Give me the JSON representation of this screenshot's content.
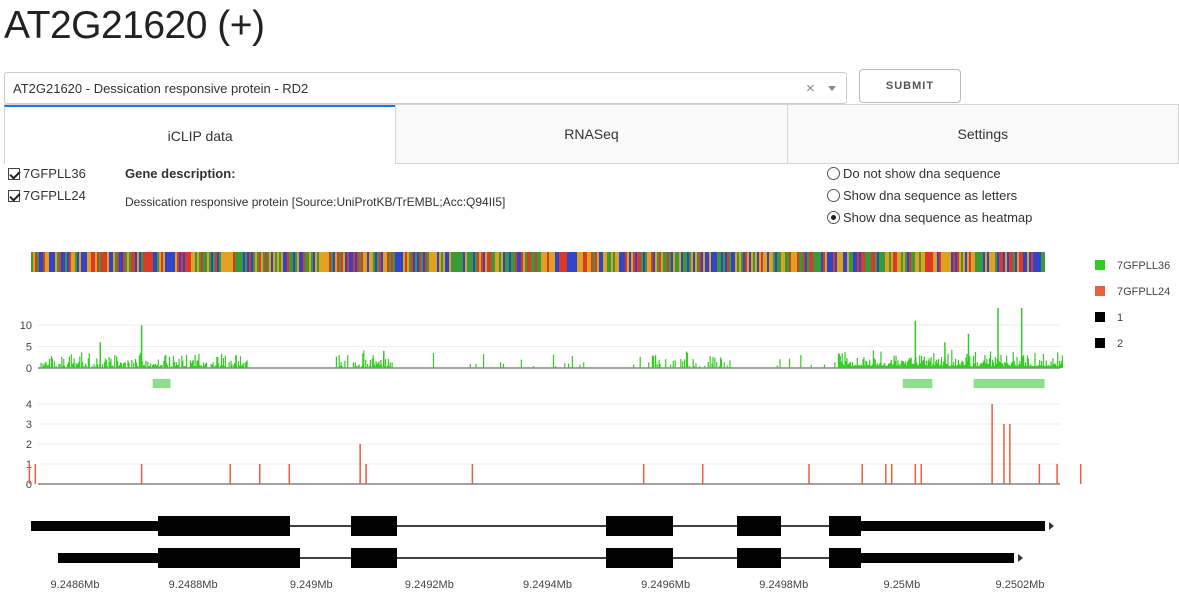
{
  "page_title": "AT2G21620 (+)",
  "gene_select": {
    "value": "AT2G21620 - Dessication responsive protein - RD2",
    "clear_icon": "×"
  },
  "submit_label": "SUBMIT",
  "tabs": [
    {
      "label": "iCLIP data",
      "active": true
    },
    {
      "label": "RNASeq",
      "active": false
    },
    {
      "label": "Settings",
      "active": false
    }
  ],
  "datasets": [
    {
      "label": "7GFPLL36",
      "checked": true
    },
    {
      "label": "7GFPLL24",
      "checked": true
    }
  ],
  "gene_description": {
    "heading": "Gene description:",
    "text": "Dessication responsive protein [Source:UniProtKB/TrEMBL;Acc:Q94II5]"
  },
  "dna_options": [
    {
      "label": "Do not show dna sequence",
      "selected": false
    },
    {
      "label": "Show dna sequence as letters",
      "selected": false
    },
    {
      "label": "Show dna sequence as heatmap",
      "selected": true
    }
  ],
  "chart_data": [
    {
      "type": "bar",
      "series": [
        {
          "name": "7GFPLL36",
          "color": "#33cc22"
        }
      ],
      "ylim": [
        0,
        14
      ],
      "y_ticks": [
        "0",
        "5",
        "10"
      ],
      "peaks": [
        {
          "x": 9.24872,
          "y": 10
        },
        {
          "x": 9.24865,
          "y": 6
        },
        {
          "x": 9.24888,
          "y": 3
        },
        {
          "x": 9.24913,
          "y": 4
        },
        {
          "x": 9.24959,
          "y": 3
        },
        {
          "x": 9.25003,
          "y": 11
        },
        {
          "x": 9.25008,
          "y": 6
        },
        {
          "x": 9.25017,
          "y": 14
        },
        {
          "x": 9.25021,
          "y": 14
        },
        {
          "x": 9.25012,
          "y": 8
        }
      ]
    },
    {
      "type": "bar",
      "series": [
        {
          "name": "7GFPLL24",
          "color": "#e8603c"
        }
      ],
      "ylim": [
        0,
        4
      ],
      "y_ticks": [
        "0",
        "1",
        "2",
        "3",
        "4"
      ],
      "bars": [
        {
          "x": 9.24853,
          "y": 1
        },
        {
          "x": 9.24854,
          "y": 1
        },
        {
          "x": 9.24872,
          "y": 1
        },
        {
          "x": 9.24887,
          "y": 1
        },
        {
          "x": 9.24909,
          "y": 2
        },
        {
          "x": 9.2491,
          "y": 1
        },
        {
          "x": 9.25016,
          "y": 4
        },
        {
          "x": 9.25018,
          "y": 3
        },
        {
          "x": 9.25019,
          "y": 3
        },
        {
          "x": 9.25024,
          "y": 1
        }
      ]
    },
    {
      "type": "gene-model",
      "x_ticks": [
        "9.2486Mb",
        "9.2488Mb",
        "9.249Mb",
        "9.2492Mb",
        "9.2494Mb",
        "9.2496Mb",
        "9.2498Mb",
        "9.25Mb",
        "9.2502Mb"
      ],
      "legend": [
        {
          "label": "7GFPLL36",
          "color": "#33cc22"
        },
        {
          "label": "7GFPLL24",
          "color": "#e8603c"
        },
        {
          "label": "1",
          "color": "#000000"
        },
        {
          "label": "2",
          "color": "#000000"
        }
      ]
    }
  ]
}
